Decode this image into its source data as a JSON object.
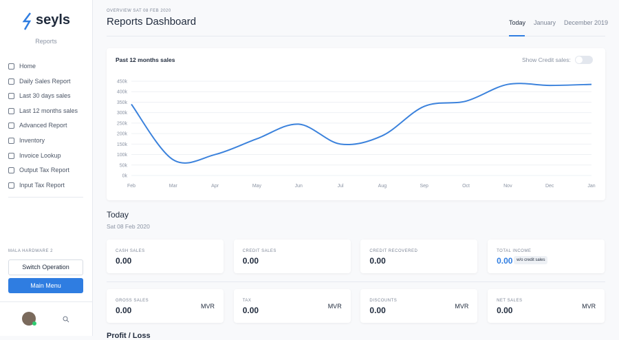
{
  "sidebar": {
    "logo": "seyls",
    "subtitle": "Reports",
    "nav": [
      "Home",
      "Daily Sales Report",
      "Last 30 days sales",
      "Last 12 months sales",
      "Advanced Report",
      "Inventory",
      "Invoice Lookup",
      "Output Tax Report",
      "Input Tax Report"
    ],
    "company": "MALA HARDWARE 2",
    "switch_button": "Switch Operation",
    "menu_button": "Main Menu"
  },
  "header": {
    "overline": "OVERVIEW SAT 08 FEB 2020",
    "title": "Reports Dashboard",
    "tabs": [
      "Today",
      "January",
      "December 2019"
    ]
  },
  "chart_data": {
    "type": "line",
    "title": "Past 12 months sales",
    "toggle_label": "Show Credit sales:",
    "categories": [
      "Feb",
      "Mar",
      "Apr",
      "May",
      "Jun",
      "Jul",
      "Aug",
      "Sep",
      "Oct",
      "Nov",
      "Dec",
      "Jan"
    ],
    "series": [
      {
        "name": "Sales",
        "color": "#3b82dc",
        "values": [
          340000,
          75000,
          100000,
          175000,
          245000,
          150000,
          190000,
          330000,
          355000,
          435000,
          430000,
          435000
        ]
      }
    ],
    "ylim": [
      0,
      450000
    ],
    "yticks": [
      {
        "value": 0,
        "label": "0k"
      },
      {
        "value": 50000,
        "label": "50k"
      },
      {
        "value": 100000,
        "label": "100k"
      },
      {
        "value": 150000,
        "label": "150k"
      },
      {
        "value": 200000,
        "label": "200k"
      },
      {
        "value": 250000,
        "label": "250k"
      },
      {
        "value": 300000,
        "label": "300k"
      },
      {
        "value": 350000,
        "label": "350k"
      },
      {
        "value": 400000,
        "label": "400k"
      },
      {
        "value": 450000,
        "label": "450k"
      }
    ],
    "grid": true
  },
  "today": {
    "title": "Today",
    "date": "Sat 08 Feb 2020",
    "cards": [
      {
        "label": "CASH SALES",
        "value": "0.00"
      },
      {
        "label": "CREDIT SALES",
        "value": "0.00"
      },
      {
        "label": "CREDIT RECOVERED",
        "value": "0.00"
      },
      {
        "label": "TOTAL INCOME",
        "value": "0.00",
        "badge": "w/o credit sales"
      }
    ],
    "summary": [
      {
        "label": "GROSS SALES",
        "value": "0.00",
        "unit": "MVR"
      },
      {
        "label": "TAX",
        "value": "0.00",
        "unit": "MVR"
      },
      {
        "label": "DISCOUNTS",
        "value": "0.00",
        "unit": "MVR"
      },
      {
        "label": "NET SALES",
        "value": "0.00",
        "unit": "MVR"
      }
    ]
  },
  "next_section": "Profit / Loss"
}
